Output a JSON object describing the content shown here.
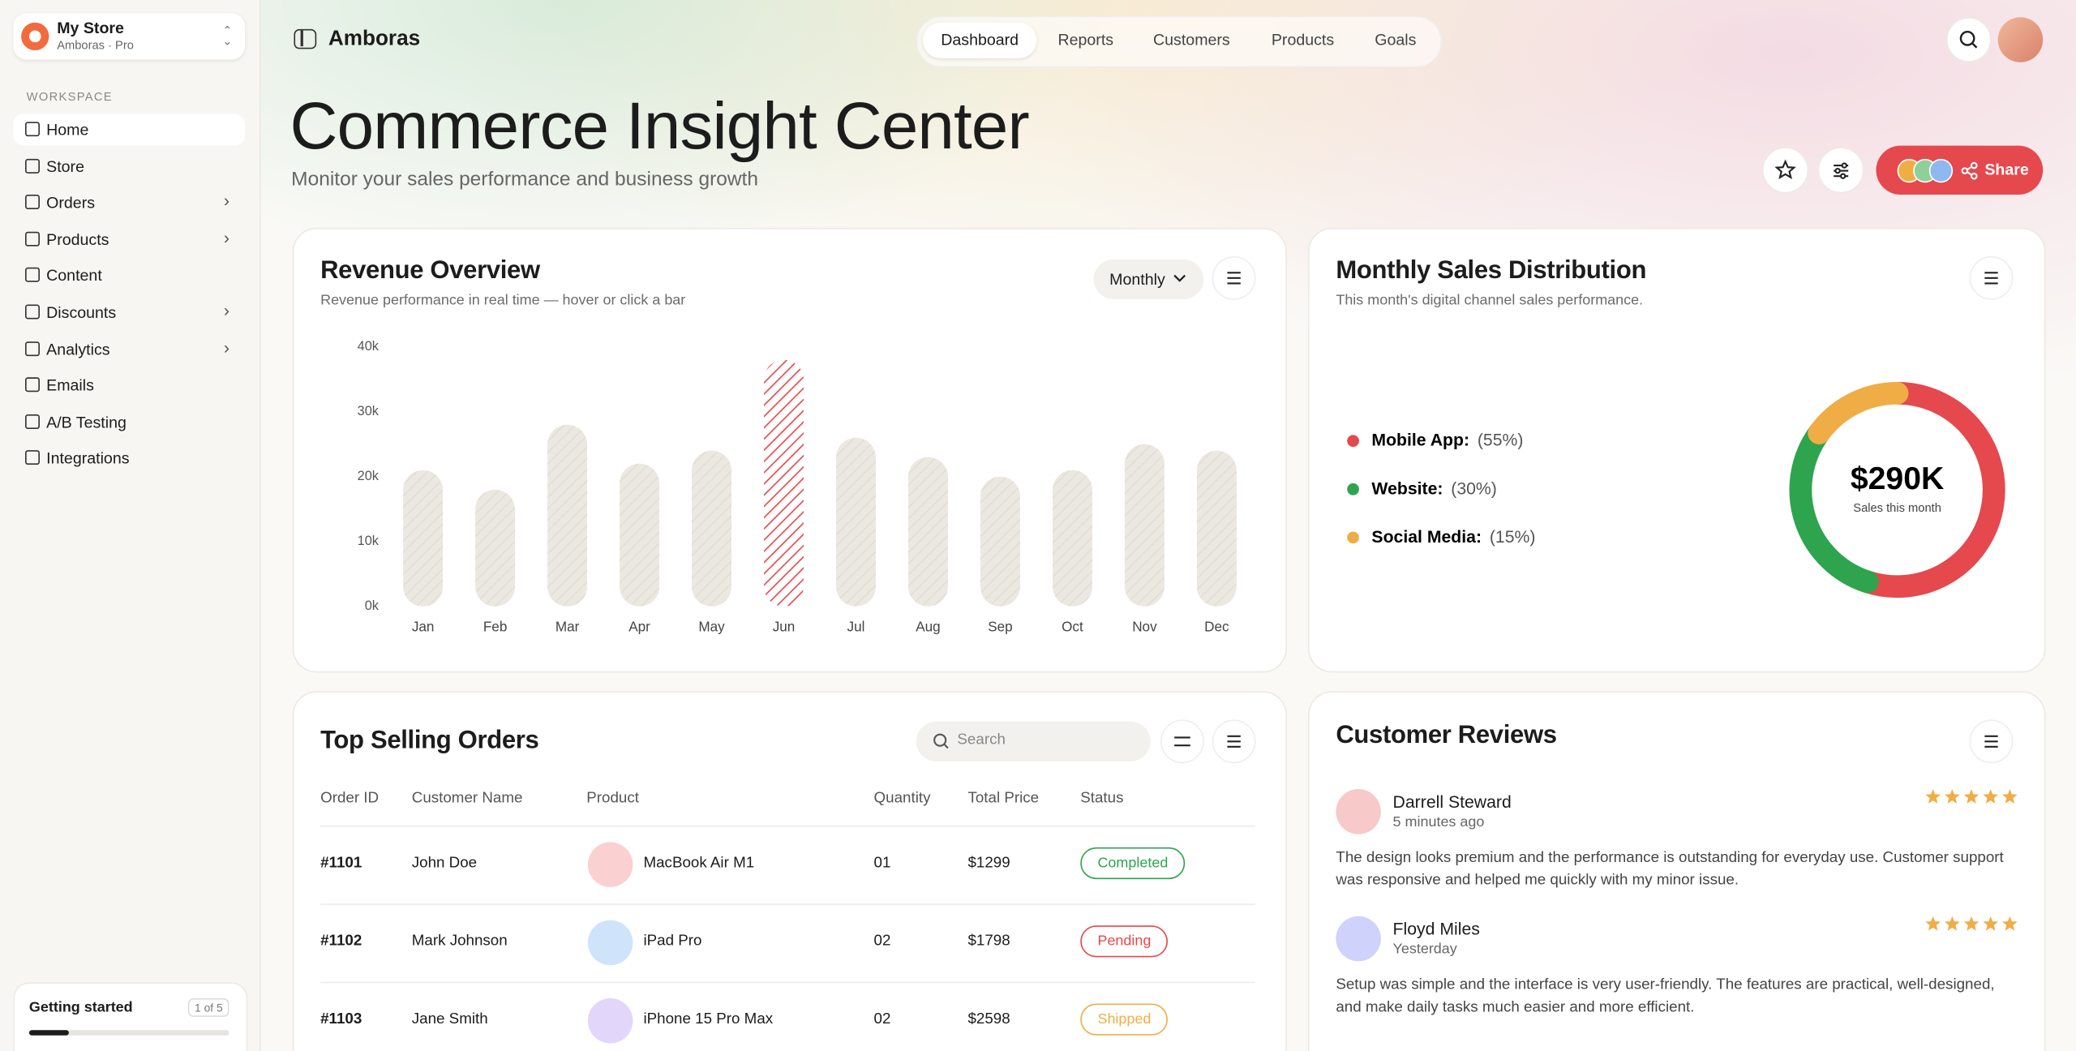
{
  "sidebar": {
    "store_name": "My Store",
    "store_plan": "Amboras · Pro",
    "section": "WORKSPACE",
    "nav": [
      {
        "label": "Home",
        "expandable": false
      },
      {
        "label": "Store",
        "expandable": false
      },
      {
        "label": "Orders",
        "expandable": true
      },
      {
        "label": "Products",
        "expandable": true
      },
      {
        "label": "Content",
        "expandable": false
      },
      {
        "label": "Discounts",
        "expandable": true
      },
      {
        "label": "Analytics",
        "expandable": true
      },
      {
        "label": "Emails",
        "expandable": false
      },
      {
        "label": "A/B Testing",
        "expandable": false
      },
      {
        "label": "Integrations",
        "expandable": false
      }
    ],
    "getting_started": {
      "title": "Getting started",
      "progress": "1 of 5"
    }
  },
  "header": {
    "brand": "Amboras",
    "tabs": [
      "Dashboard",
      "Reports",
      "Customers",
      "Products",
      "Goals"
    ],
    "title": "Commerce Insight Center",
    "subtitle": "Monitor your sales performance and business growth",
    "share": "Share"
  },
  "revenue_chart": {
    "type": "bar",
    "title": "Revenue Overview",
    "subtitle": "Revenue performance in real time — hover or click a bar",
    "period": "Monthly",
    "categories": [
      "Jan",
      "Feb",
      "Mar",
      "Apr",
      "May",
      "Jun",
      "Jul",
      "Aug",
      "Sep",
      "Oct",
      "Nov",
      "Dec"
    ],
    "values": [
      21000,
      18000,
      28000,
      22000,
      24000,
      38000,
      26000,
      23000,
      20000,
      21000,
      25000,
      24000
    ],
    "color": "#ebe8e1",
    "highlight_color": "#e5484d",
    "highlight_index": 5,
    "ylim": [
      0,
      40000
    ],
    "yticks": [
      {
        "value": 0,
        "label": "0k"
      },
      {
        "value": 10000,
        "label": "10k"
      },
      {
        "value": 20000,
        "label": "20k"
      },
      {
        "value": 30000,
        "label": "30k"
      },
      {
        "value": 40000,
        "label": "40k"
      }
    ]
  },
  "sales_chart": {
    "type": "donut",
    "title": "Monthly Sales Distribution",
    "subtitle": "This month's digital channel sales performance.",
    "center_value": "$290K",
    "center_label": "Sales this month",
    "categories": [
      "Mobile App:",
      "Website:",
      "Social Media:"
    ],
    "values": [
      55,
      30,
      15
    ],
    "value_labels": [
      "(55%)",
      "(30%)",
      "(15%)"
    ],
    "colors": [
      "#e5484d",
      "#2ea44f",
      "#f0ad45"
    ]
  },
  "orders": {
    "title": "Top Selling Orders",
    "search_placeholder": "Search",
    "columns": [
      "Order ID",
      "Customer Name",
      "Product",
      "Quantity",
      "Total Price",
      "Status"
    ],
    "rows": [
      [
        "#1101",
        "John Doe",
        "MacBook Air M1",
        "01",
        "$1299",
        "Completed"
      ],
      [
        "#1102",
        "Mark Johnson",
        "iPad Pro",
        "02",
        "$1798",
        "Pending"
      ],
      [
        "#1103",
        "Jane Smith",
        "iPhone 15 Pro Max",
        "02",
        "$2598",
        "Shipped"
      ]
    ]
  },
  "reviews": {
    "title": "Customer Reviews",
    "items": [
      {
        "name": "Darrell Steward",
        "time": "5 minutes ago",
        "rating": 5,
        "text": "The design looks premium and the performance is outstanding for everyday use. Customer support was responsive and helped me quickly with my minor issue."
      },
      {
        "name": "Floyd Miles",
        "time": "Yesterday",
        "rating": 5,
        "text": "Setup was simple and the interface is very user-friendly. The features are practical, well-designed, and make daily tasks much easier and more efficient."
      }
    ]
  }
}
